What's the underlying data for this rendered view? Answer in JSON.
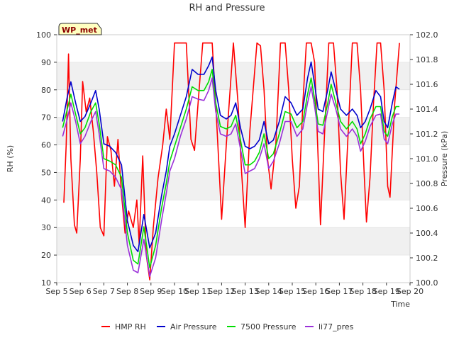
{
  "chart_data": {
    "type": "line",
    "title": "RH and Pressure",
    "badge": "WP_met",
    "xlabel": "Time",
    "ylabel_left": "RH (%)",
    "ylabel_right": "Pressure (kPa)",
    "x_ticks": [
      "Sep 5",
      "Sep 6",
      "Sep 7",
      "Sep 8",
      "Sep 9",
      "Sep 10",
      "Sep 11",
      "Sep 12",
      "Sep 13",
      "Sep 14",
      "Sep 15",
      "Sep 16",
      "Sep 17",
      "Sep 18",
      "Sep 19",
      "Sep 20"
    ],
    "xlim": [
      5,
      20
    ],
    "ylim_left": [
      10,
      100
    ],
    "y_ticks_left": [
      10,
      20,
      30,
      40,
      50,
      60,
      70,
      80,
      90,
      100
    ],
    "ylim_right": [
      100.0,
      102.0
    ],
    "y_ticks_right": [
      "100.0",
      "100.2",
      "100.4",
      "100.6",
      "100.8",
      "101.0",
      "101.2",
      "101.4",
      "101.6",
      "101.8",
      "102.0"
    ],
    "grid": "horizontal bands",
    "legend_position": "bottom",
    "colors": {
      "HMP RH": "#ff0000",
      "Air Pressure": "#0000cc",
      "7500 Pressure": "#00dd00",
      "li77_pres": "#9b30d9",
      "band": "#f0f0f0",
      "badge_fill": "#ffffc0"
    },
    "series": [
      {
        "name": "HMP RH",
        "axis": "left",
        "points": [
          [
            5.3,
            39
          ],
          [
            5.4,
            60
          ],
          [
            5.5,
            93
          ],
          [
            5.6,
            55
          ],
          [
            5.75,
            31
          ],
          [
            5.85,
            28
          ],
          [
            6.0,
            55
          ],
          [
            6.1,
            83
          ],
          [
            6.25,
            72
          ],
          [
            6.4,
            77
          ],
          [
            6.55,
            65
          ],
          [
            6.7,
            50
          ],
          [
            6.85,
            30
          ],
          [
            7.0,
            27
          ],
          [
            7.15,
            63
          ],
          [
            7.3,
            58
          ],
          [
            7.45,
            45
          ],
          [
            7.6,
            62
          ],
          [
            7.75,
            42
          ],
          [
            7.9,
            28
          ],
          [
            8.05,
            36
          ],
          [
            8.25,
            30
          ],
          [
            8.4,
            40
          ],
          [
            8.5,
            24
          ],
          [
            8.65,
            56
          ],
          [
            8.8,
            20
          ],
          [
            8.95,
            11
          ],
          [
            9.1,
            30
          ],
          [
            9.3,
            48
          ],
          [
            9.5,
            60
          ],
          [
            9.65,
            73
          ],
          [
            9.8,
            62
          ],
          [
            10.0,
            97
          ],
          [
            10.3,
            97
          ],
          [
            10.5,
            97
          ],
          [
            10.7,
            62
          ],
          [
            10.85,
            58
          ],
          [
            11.0,
            75
          ],
          [
            11.2,
            97
          ],
          [
            11.6,
            97
          ],
          [
            11.75,
            75
          ],
          [
            11.9,
            50
          ],
          [
            12.0,
            33
          ],
          [
            12.2,
            60
          ],
          [
            12.5,
            97
          ],
          [
            12.7,
            75
          ],
          [
            12.85,
            50
          ],
          [
            13.0,
            30
          ],
          [
            13.2,
            65
          ],
          [
            13.5,
            97
          ],
          [
            13.65,
            96
          ],
          [
            13.8,
            80
          ],
          [
            13.95,
            55
          ],
          [
            14.1,
            44
          ],
          [
            14.3,
            60
          ],
          [
            14.5,
            97
          ],
          [
            14.7,
            97
          ],
          [
            14.85,
            80
          ],
          [
            15.0,
            55
          ],
          [
            15.15,
            37
          ],
          [
            15.3,
            45
          ],
          [
            15.45,
            75
          ],
          [
            15.6,
            97
          ],
          [
            15.8,
            97
          ],
          [
            15.95,
            90
          ],
          [
            16.1,
            55
          ],
          [
            16.2,
            31
          ],
          [
            16.35,
            60
          ],
          [
            16.55,
            97
          ],
          [
            16.75,
            97
          ],
          [
            16.9,
            80
          ],
          [
            17.05,
            50
          ],
          [
            17.2,
            33
          ],
          [
            17.35,
            60
          ],
          [
            17.55,
            97
          ],
          [
            17.75,
            97
          ],
          [
            17.9,
            80
          ],
          [
            18.05,
            50
          ],
          [
            18.15,
            32
          ],
          [
            18.3,
            48
          ],
          [
            18.45,
            75
          ],
          [
            18.6,
            97
          ],
          [
            18.75,
            97
          ],
          [
            18.9,
            80
          ],
          [
            19.05,
            45
          ],
          [
            19.15,
            41
          ],
          [
            19.35,
            75
          ],
          [
            19.55,
            97
          ]
        ]
      },
      {
        "name": "Air Pressure",
        "axis": "right",
        "points": [
          [
            5.25,
            101.3
          ],
          [
            5.45,
            101.5
          ],
          [
            5.6,
            101.62
          ],
          [
            5.8,
            101.45
          ],
          [
            6.0,
            101.3
          ],
          [
            6.2,
            101.34
          ],
          [
            6.45,
            101.45
          ],
          [
            6.65,
            101.55
          ],
          [
            6.8,
            101.4
          ],
          [
            7.0,
            101.12
          ],
          [
            7.25,
            101.1
          ],
          [
            7.5,
            101.05
          ],
          [
            7.75,
            100.95
          ],
          [
            8.0,
            100.5
          ],
          [
            8.25,
            100.3
          ],
          [
            8.45,
            100.25
          ],
          [
            8.7,
            100.55
          ],
          [
            8.95,
            100.28
          ],
          [
            9.2,
            100.4
          ],
          [
            9.45,
            100.7
          ],
          [
            9.65,
            100.9
          ],
          [
            9.8,
            101.1
          ],
          [
            10.0,
            101.2
          ],
          [
            10.25,
            101.35
          ],
          [
            10.5,
            101.5
          ],
          [
            10.75,
            101.72
          ],
          [
            11.0,
            101.68
          ],
          [
            11.25,
            101.68
          ],
          [
            11.45,
            101.75
          ],
          [
            11.6,
            101.82
          ],
          [
            11.75,
            101.55
          ],
          [
            11.95,
            101.35
          ],
          [
            12.2,
            101.32
          ],
          [
            12.4,
            101.35
          ],
          [
            12.6,
            101.45
          ],
          [
            12.8,
            101.25
          ],
          [
            13.0,
            101.1
          ],
          [
            13.2,
            101.08
          ],
          [
            13.4,
            101.1
          ],
          [
            13.6,
            101.15
          ],
          [
            13.8,
            101.3
          ],
          [
            14.0,
            101.12
          ],
          [
            14.2,
            101.15
          ],
          [
            14.45,
            101.3
          ],
          [
            14.7,
            101.5
          ],
          [
            14.95,
            101.45
          ],
          [
            15.2,
            101.35
          ],
          [
            15.45,
            101.4
          ],
          [
            15.65,
            101.65
          ],
          [
            15.8,
            101.78
          ],
          [
            15.95,
            101.6
          ],
          [
            16.1,
            101.4
          ],
          [
            16.3,
            101.38
          ],
          [
            16.5,
            101.55
          ],
          [
            16.65,
            101.7
          ],
          [
            16.85,
            101.55
          ],
          [
            17.05,
            101.4
          ],
          [
            17.3,
            101.35
          ],
          [
            17.55,
            101.4
          ],
          [
            17.75,
            101.35
          ],
          [
            17.9,
            101.25
          ],
          [
            18.1,
            101.3
          ],
          [
            18.3,
            101.4
          ],
          [
            18.55,
            101.55
          ],
          [
            18.75,
            101.5
          ],
          [
            18.9,
            101.3
          ],
          [
            19.05,
            101.25
          ],
          [
            19.25,
            101.45
          ],
          [
            19.4,
            101.58
          ],
          [
            19.55,
            101.56
          ]
        ]
      },
      {
        "name": "7500 Pressure",
        "axis": "right",
        "points": [
          [
            5.25,
            101.25
          ],
          [
            5.45,
            101.4
          ],
          [
            5.6,
            101.52
          ],
          [
            5.8,
            101.36
          ],
          [
            6.0,
            101.2
          ],
          [
            6.2,
            101.25
          ],
          [
            6.45,
            101.38
          ],
          [
            6.65,
            101.45
          ],
          [
            6.8,
            101.28
          ],
          [
            7.0,
            101.0
          ],
          [
            7.25,
            100.98
          ],
          [
            7.5,
            100.95
          ],
          [
            7.75,
            100.85
          ],
          [
            8.0,
            100.4
          ],
          [
            8.25,
            100.18
          ],
          [
            8.45,
            100.15
          ],
          [
            8.7,
            100.45
          ],
          [
            8.95,
            100.12
          ],
          [
            9.2,
            100.3
          ],
          [
            9.45,
            100.6
          ],
          [
            9.65,
            100.8
          ],
          [
            9.8,
            100.98
          ],
          [
            10.0,
            101.1
          ],
          [
            10.25,
            101.25
          ],
          [
            10.5,
            101.4
          ],
          [
            10.75,
            101.58
          ],
          [
            11.0,
            101.55
          ],
          [
            11.25,
            101.55
          ],
          [
            11.45,
            101.62
          ],
          [
            11.6,
            101.72
          ],
          [
            11.75,
            101.45
          ],
          [
            11.95,
            101.26
          ],
          [
            12.2,
            101.24
          ],
          [
            12.4,
            101.26
          ],
          [
            12.6,
            101.35
          ],
          [
            12.8,
            101.15
          ],
          [
            13.0,
            100.95
          ],
          [
            13.2,
            100.95
          ],
          [
            13.4,
            100.98
          ],
          [
            13.6,
            101.05
          ],
          [
            13.8,
            101.2
          ],
          [
            14.0,
            101.0
          ],
          [
            14.2,
            101.04
          ],
          [
            14.45,
            101.2
          ],
          [
            14.7,
            101.38
          ],
          [
            14.95,
            101.36
          ],
          [
            15.2,
            101.25
          ],
          [
            15.45,
            101.3
          ],
          [
            15.65,
            101.52
          ],
          [
            15.8,
            101.65
          ],
          [
            15.95,
            101.48
          ],
          [
            16.1,
            101.28
          ],
          [
            16.3,
            101.27
          ],
          [
            16.5,
            101.44
          ],
          [
            16.65,
            101.6
          ],
          [
            16.85,
            101.45
          ],
          [
            17.05,
            101.3
          ],
          [
            17.3,
            101.24
          ],
          [
            17.55,
            101.3
          ],
          [
            17.75,
            101.24
          ],
          [
            17.9,
            101.12
          ],
          [
            18.1,
            101.2
          ],
          [
            18.3,
            101.32
          ],
          [
            18.55,
            101.42
          ],
          [
            18.75,
            101.42
          ],
          [
            18.9,
            101.22
          ],
          [
            19.05,
            101.18
          ],
          [
            19.25,
            101.34
          ],
          [
            19.4,
            101.42
          ],
          [
            19.55,
            101.42
          ]
        ]
      },
      {
        "name": "li77_pres",
        "axis": "right",
        "points": [
          [
            5.25,
            101.18
          ],
          [
            5.45,
            101.32
          ],
          [
            5.6,
            101.45
          ],
          [
            5.8,
            101.3
          ],
          [
            6.0,
            101.12
          ],
          [
            6.2,
            101.18
          ],
          [
            6.45,
            101.3
          ],
          [
            6.65,
            101.38
          ],
          [
            6.8,
            101.2
          ],
          [
            7.0,
            100.92
          ],
          [
            7.25,
            100.9
          ],
          [
            7.5,
            100.85
          ],
          [
            7.75,
            100.75
          ],
          [
            8.0,
            100.3
          ],
          [
            8.25,
            100.1
          ],
          [
            8.45,
            100.08
          ],
          [
            8.7,
            100.35
          ],
          [
            8.95,
            100.05
          ],
          [
            9.2,
            100.2
          ],
          [
            9.45,
            100.5
          ],
          [
            9.65,
            100.72
          ],
          [
            9.8,
            100.9
          ],
          [
            10.0,
            101.0
          ],
          [
            10.25,
            101.18
          ],
          [
            10.5,
            101.32
          ],
          [
            10.75,
            101.5
          ],
          [
            11.0,
            101.48
          ],
          [
            11.25,
            101.47
          ],
          [
            11.45,
            101.55
          ],
          [
            11.6,
            101.65
          ],
          [
            11.75,
            101.38
          ],
          [
            11.95,
            101.2
          ],
          [
            12.2,
            101.18
          ],
          [
            12.4,
            101.2
          ],
          [
            12.6,
            101.28
          ],
          [
            12.8,
            101.08
          ],
          [
            13.0,
            100.88
          ],
          [
            13.2,
            100.9
          ],
          [
            13.4,
            100.92
          ],
          [
            13.6,
            101.0
          ],
          [
            13.8,
            101.12
          ],
          [
            14.0,
            100.92
          ],
          [
            14.2,
            100.98
          ],
          [
            14.45,
            101.12
          ],
          [
            14.7,
            101.3
          ],
          [
            14.95,
            101.3
          ],
          [
            15.2,
            101.18
          ],
          [
            15.45,
            101.24
          ],
          [
            15.65,
            101.45
          ],
          [
            15.8,
            101.58
          ],
          [
            15.95,
            101.42
          ],
          [
            16.1,
            101.22
          ],
          [
            16.3,
            101.2
          ],
          [
            16.5,
            101.38
          ],
          [
            16.65,
            101.52
          ],
          [
            16.85,
            101.4
          ],
          [
            17.05,
            101.24
          ],
          [
            17.3,
            101.18
          ],
          [
            17.55,
            101.24
          ],
          [
            17.75,
            101.18
          ],
          [
            17.9,
            101.06
          ],
          [
            18.1,
            101.14
          ],
          [
            18.3,
            101.26
          ],
          [
            18.55,
            101.35
          ],
          [
            18.75,
            101.36
          ],
          [
            18.9,
            101.16
          ],
          [
            19.05,
            101.12
          ],
          [
            19.25,
            101.28
          ],
          [
            19.4,
            101.36
          ],
          [
            19.55,
            101.36
          ]
        ]
      }
    ]
  }
}
